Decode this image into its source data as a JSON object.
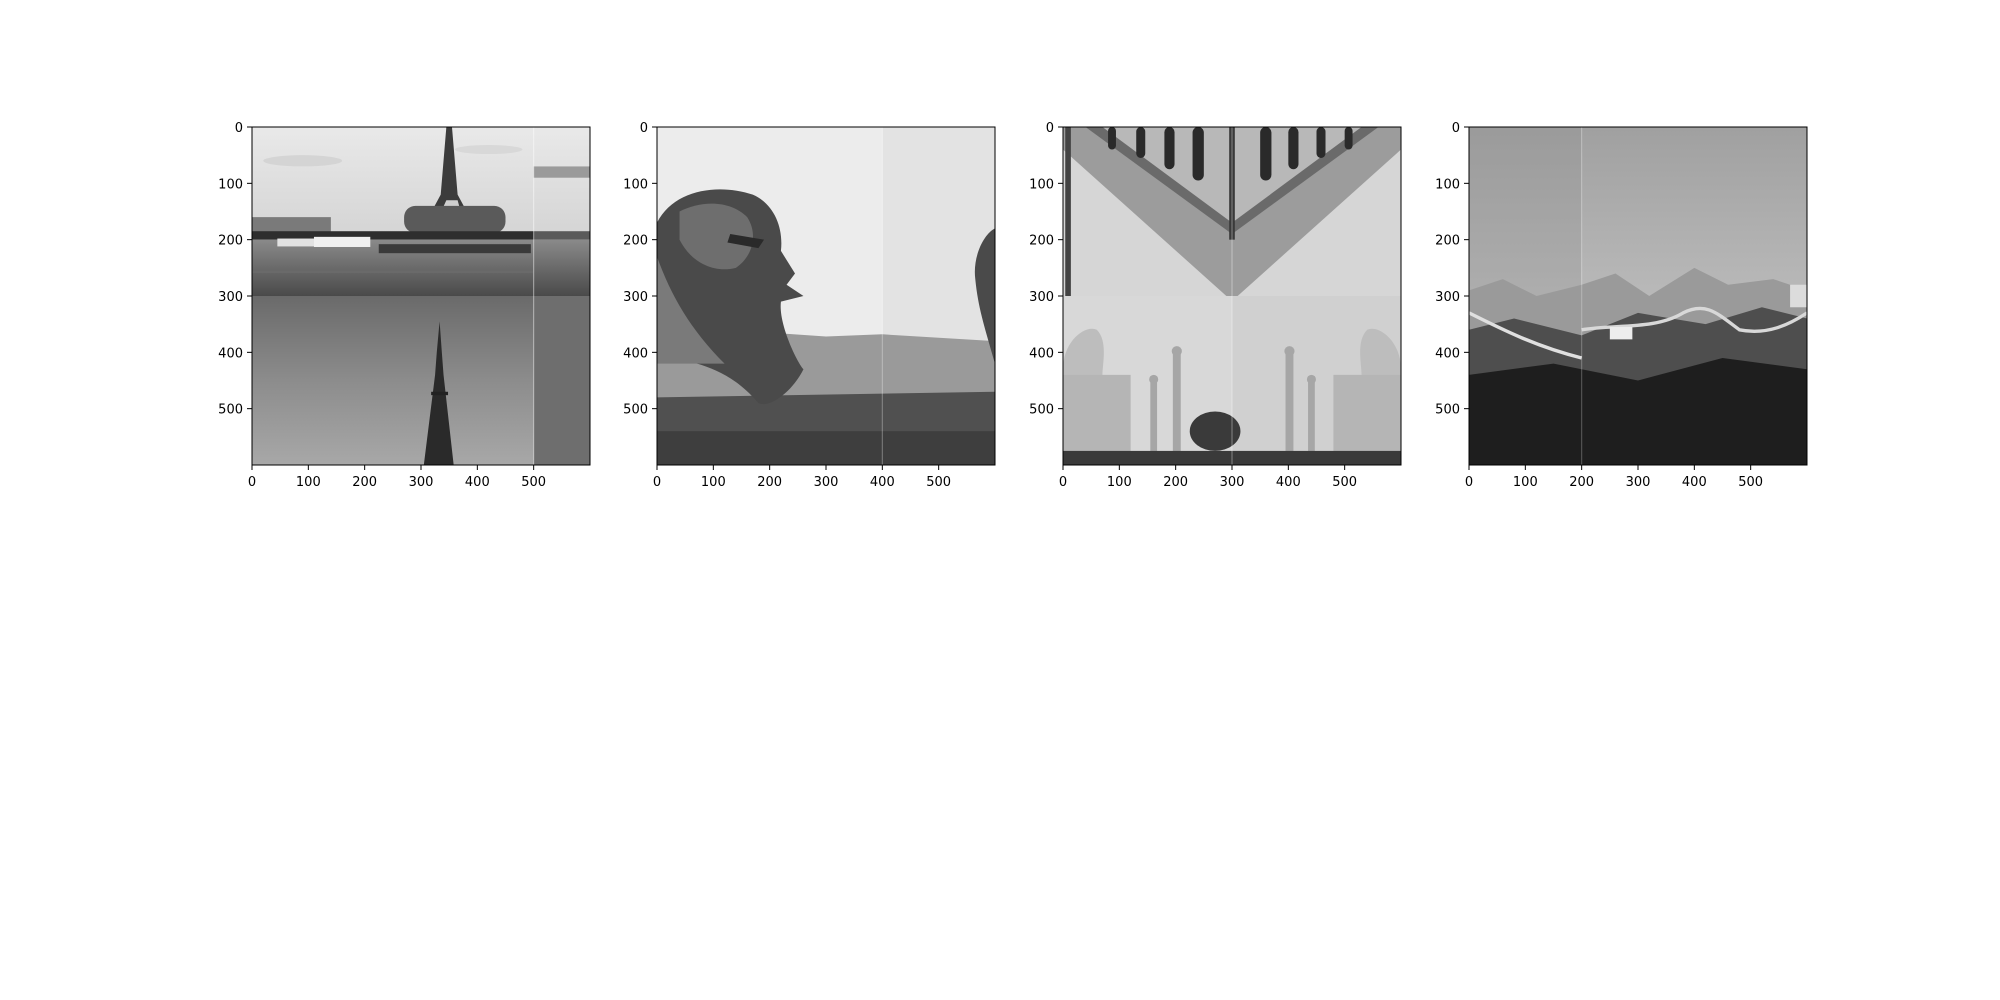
{
  "figure": {
    "background": "#ffffff",
    "panels": [
      {
        "name": "panel-1",
        "type": "image",
        "x_ticks": [
          "0",
          "100",
          "200",
          "300",
          "400",
          "500"
        ],
        "y_ticks": [
          "0",
          "100",
          "200",
          "300",
          "400",
          "500"
        ],
        "image_size": [
          600,
          600
        ],
        "tile_split": {
          "x": 500,
          "y": 300
        },
        "content": "eiffel-tower-mosaic"
      },
      {
        "name": "panel-2",
        "type": "image",
        "x_ticks": [
          "0",
          "100",
          "200",
          "300",
          "400",
          "500"
        ],
        "y_ticks": [
          "0",
          "100",
          "200",
          "300",
          "400",
          "500"
        ],
        "image_size": [
          600,
          600
        ],
        "tile_split": {
          "x": 400
        },
        "content": "sphinx-mosaic"
      },
      {
        "name": "panel-3",
        "type": "image",
        "x_ticks": [
          "0",
          "100",
          "200",
          "300",
          "400",
          "500"
        ],
        "y_ticks": [
          "0",
          "100",
          "200",
          "300",
          "400",
          "500"
        ],
        "image_size": [
          600,
          600
        ],
        "tile_split": {
          "x": 300,
          "y": 300
        },
        "content": "taj-mahal-mosaic"
      },
      {
        "name": "panel-4",
        "type": "image",
        "x_ticks": [
          "0",
          "100",
          "200",
          "300",
          "400",
          "500"
        ],
        "y_ticks": [
          "0",
          "100",
          "200",
          "300",
          "400",
          "500"
        ],
        "image_size": [
          600,
          600
        ],
        "tile_split": {
          "x": 200
        },
        "content": "great-wall-mosaic"
      }
    ]
  },
  "chart_data": [
    {
      "type": "heatmap",
      "colormap": "gray",
      "xlim": [
        0,
        600
      ],
      "ylim": [
        600,
        0
      ],
      "x_ticks": [
        0,
        100,
        200,
        300,
        400,
        500
      ],
      "y_ticks": [
        0,
        100,
        200,
        300,
        400,
        500
      ],
      "title": "",
      "xlabel": "",
      "ylabel": ""
    },
    {
      "type": "heatmap",
      "colormap": "gray",
      "xlim": [
        0,
        600
      ],
      "ylim": [
        600,
        0
      ],
      "x_ticks": [
        0,
        100,
        200,
        300,
        400,
        500
      ],
      "y_ticks": [
        0,
        100,
        200,
        300,
        400,
        500
      ],
      "title": "",
      "xlabel": "",
      "ylabel": ""
    },
    {
      "type": "heatmap",
      "colormap": "gray",
      "xlim": [
        0,
        600
      ],
      "ylim": [
        600,
        0
      ],
      "x_ticks": [
        0,
        100,
        200,
        300,
        400,
        500
      ],
      "y_ticks": [
        0,
        100,
        200,
        300,
        400,
        500
      ],
      "title": "",
      "xlabel": "",
      "ylabel": ""
    },
    {
      "type": "heatmap",
      "colormap": "gray",
      "xlim": [
        0,
        600
      ],
      "ylim": [
        600,
        0
      ],
      "x_ticks": [
        0,
        100,
        200,
        300,
        400,
        500
      ],
      "y_ticks": [
        0,
        100,
        200,
        300,
        400,
        500
      ],
      "title": "",
      "xlabel": "",
      "ylabel": ""
    }
  ]
}
